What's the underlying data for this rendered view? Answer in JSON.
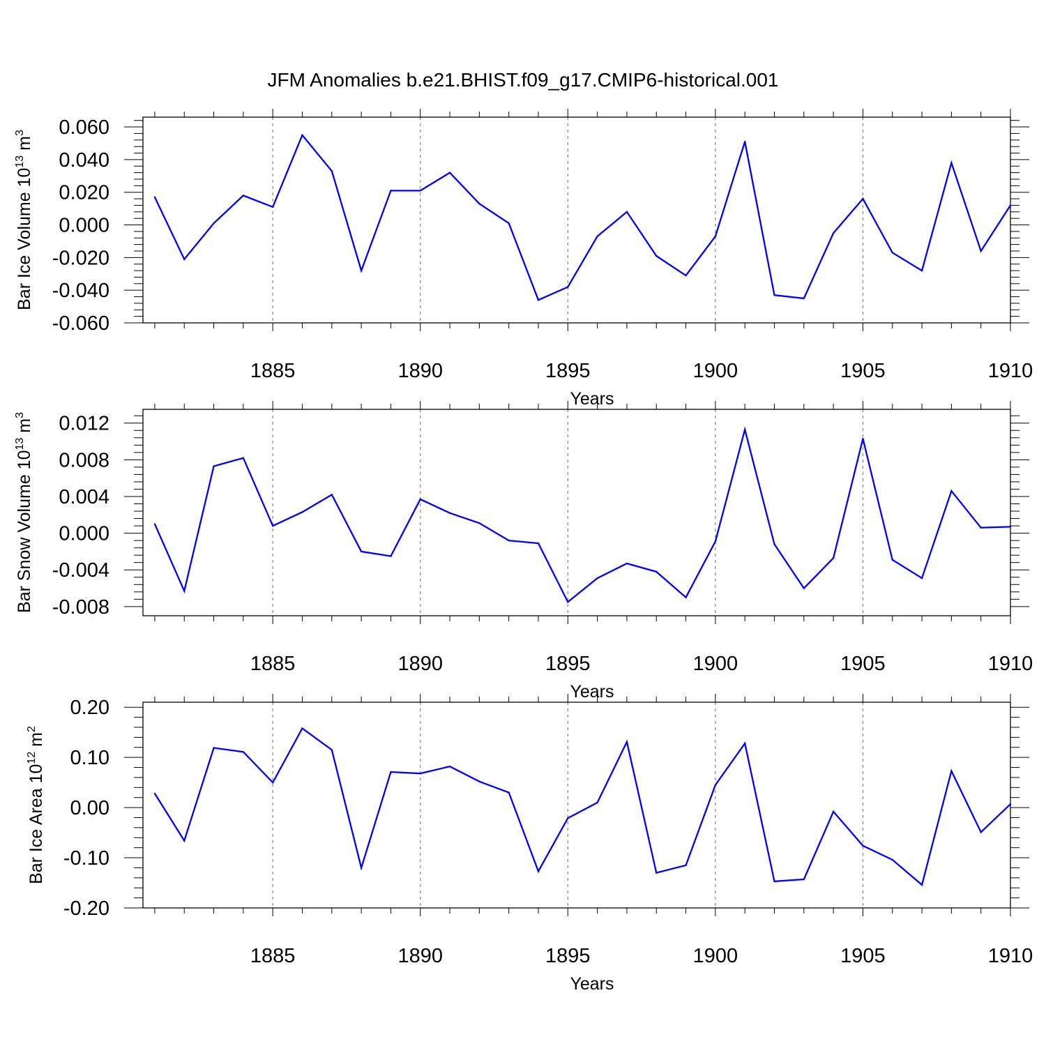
{
  "figure": {
    "title": "JFM Anomalies b.e21.BHIST.f09_g17.CMIP6-historical.001"
  },
  "colors": {
    "series": "#0000ff",
    "axes": "#000000",
    "grid": "#808080",
    "background": "#ffffff"
  },
  "chart_data": [
    {
      "type": "line",
      "title": "",
      "xlabel": "Years",
      "ylabel": {
        "main": "Bar Ice Volume 10",
        "sup1": "13",
        "mid": " m",
        "sup2": "3"
      },
      "xlim": [
        1880.6,
        1910
      ],
      "ylim": [
        -0.06,
        0.066
      ],
      "xticks": [
        1885,
        1890,
        1895,
        1900,
        1905,
        1910
      ],
      "xticklabels": [
        "1885",
        "1890",
        "1895",
        "1900",
        "1905",
        "1910"
      ],
      "yticks": [
        -0.06,
        -0.04,
        -0.02,
        0.0,
        0.02,
        0.04,
        0.06
      ],
      "yticklabels": [
        "-0.060",
        "-0.040",
        "-0.020",
        "0.000",
        "0.020",
        "0.040",
        "0.060"
      ],
      "grid": "vertical dashed at major x ticks",
      "x": [
        1881,
        1882,
        1883,
        1884,
        1885,
        1886,
        1887,
        1888,
        1889,
        1890,
        1891,
        1892,
        1893,
        1894,
        1895,
        1896,
        1897,
        1898,
        1899,
        1900,
        1901,
        1902,
        1903,
        1904,
        1905,
        1906,
        1907,
        1908,
        1909,
        1910
      ],
      "series": [
        {
          "name": "Bar Ice Volume",
          "values": [
            0.017,
            -0.021,
            0.001,
            0.018,
            0.011,
            0.055,
            0.033,
            -0.028,
            0.021,
            0.021,
            0.032,
            0.013,
            0.001,
            -0.046,
            -0.038,
            -0.007,
            0.008,
            -0.019,
            -0.031,
            -0.007,
            0.051,
            -0.043,
            -0.045,
            -0.005,
            0.016,
            -0.017,
            -0.028,
            0.038,
            -0.016,
            0.012
          ]
        }
      ]
    },
    {
      "type": "line",
      "title": "",
      "xlabel": "Years",
      "ylabel": {
        "main": "Bar Snow Volume 10",
        "sup1": "13",
        "mid": " m",
        "sup2": "3"
      },
      "xlim": [
        1880.6,
        1910
      ],
      "ylim": [
        -0.009,
        0.0135
      ],
      "xticks": [
        1885,
        1890,
        1895,
        1900,
        1905,
        1910
      ],
      "xticklabels": [
        "1885",
        "1890",
        "1895",
        "1900",
        "1905",
        "1910"
      ],
      "yticks": [
        -0.008,
        -0.004,
        0.0,
        0.004,
        0.008,
        0.012
      ],
      "yticklabels": [
        "-0.008",
        "-0.004",
        "0.000",
        "0.004",
        "0.008",
        "0.012"
      ],
      "grid": "vertical dashed at major x ticks",
      "x": [
        1881,
        1882,
        1883,
        1884,
        1885,
        1886,
        1887,
        1888,
        1889,
        1890,
        1891,
        1892,
        1893,
        1894,
        1895,
        1896,
        1897,
        1898,
        1899,
        1900,
        1901,
        1902,
        1903,
        1904,
        1905,
        1906,
        1907,
        1908,
        1909,
        1910
      ],
      "series": [
        {
          "name": "Bar Snow Volume",
          "values": [
            0.001,
            -0.0063,
            0.0073,
            0.0082,
            0.0008,
            0.0023,
            0.0042,
            -0.002,
            -0.0025,
            0.0037,
            0.0022,
            0.0011,
            -0.0008,
            -0.0011,
            -0.0075,
            -0.0049,
            -0.0033,
            -0.0042,
            -0.007,
            -0.0009,
            0.0113,
            -0.0012,
            -0.006,
            -0.0027,
            0.0103,
            -0.0029,
            -0.0049,
            0.0046,
            0.0006,
            0.0007
          ]
        }
      ]
    },
    {
      "type": "line",
      "title": "",
      "xlabel": "Years",
      "ylabel": {
        "main": "Bar Ice Area 10",
        "sup1": "12",
        "mid": " m",
        "sup2": "2"
      },
      "xlim": [
        1880.6,
        1910
      ],
      "ylim": [
        -0.2,
        0.21
      ],
      "xticks": [
        1885,
        1890,
        1895,
        1900,
        1905,
        1910
      ],
      "xticklabels": [
        "1885",
        "1890",
        "1895",
        "1900",
        "1905",
        "1910"
      ],
      "yticks": [
        -0.2,
        -0.1,
        0.0,
        0.1,
        0.2
      ],
      "yticklabels": [
        "-0.20",
        "-0.10",
        "0.00",
        "0.10",
        "0.20"
      ],
      "grid": "vertical dashed at major x ticks",
      "x": [
        1881,
        1882,
        1883,
        1884,
        1885,
        1886,
        1887,
        1888,
        1889,
        1890,
        1891,
        1892,
        1893,
        1894,
        1895,
        1896,
        1897,
        1898,
        1899,
        1900,
        1901,
        1902,
        1903,
        1904,
        1905,
        1906,
        1907,
        1908,
        1909,
        1910
      ],
      "series": [
        {
          "name": "Bar Ice Area",
          "values": [
            0.028,
            -0.066,
            0.119,
            0.111,
            0.05,
            0.158,
            0.115,
            -0.12,
            0.071,
            0.068,
            0.082,
            0.052,
            0.03,
            -0.127,
            -0.021,
            0.01,
            0.131,
            -0.13,
            -0.115,
            0.045,
            0.128,
            -0.147,
            -0.143,
            -0.008,
            -0.076,
            -0.104,
            -0.154,
            0.073,
            -0.049,
            0.007
          ]
        }
      ]
    }
  ]
}
